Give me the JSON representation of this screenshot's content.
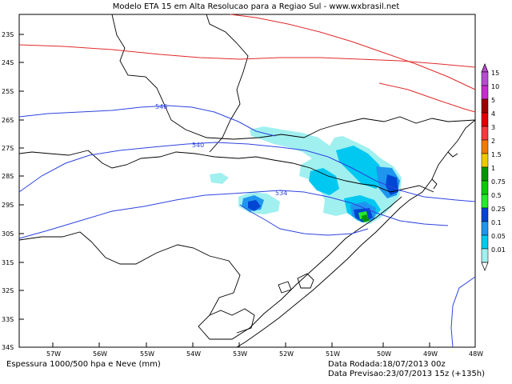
{
  "header": {
    "title": "Modelo ETA 15 em Alta Resolucao para a Regiao Sul - www.wxbrasil.net"
  },
  "footer": {
    "field_label": "Espessura 1000/500 hpa e Neve (mm)",
    "run_date": "Data Rodada:18/07/2013 00z",
    "forecast_date": "Data Previsao:23/07/2013 15z (+135h)"
  },
  "map": {
    "lat_labels": [
      "23S",
      "24S",
      "25S",
      "26S",
      "27S",
      "28S",
      "29S",
      "30S",
      "31S",
      "32S",
      "33S",
      "34S"
    ],
    "lon_labels": [
      "57W",
      "56W",
      "55W",
      "54W",
      "53W",
      "52W",
      "51W",
      "50W",
      "49W",
      "48W"
    ],
    "contour_labels": [
      "546",
      "540",
      "534"
    ],
    "colors": {
      "contour_thickness": "#2d44e0",
      "contour_red": "#e02a2a",
      "borders": "#000000"
    }
  },
  "legend": {
    "labels": [
      "15",
      "10",
      "5",
      "4",
      "3",
      "2",
      "1.5",
      "1",
      "0.75",
      "0.5",
      "0.25",
      "0.1",
      "0.05",
      "0.01"
    ],
    "colors": [
      "#b84bd0",
      "#c82ad0",
      "#a00000",
      "#e00000",
      "#f03c3c",
      "#f07a00",
      "#f0c800",
      "#009600",
      "#10c800",
      "#28e828",
      "#0046d2",
      "#1e96f0",
      "#00c8f0",
      "#a0f0f0"
    ]
  }
}
